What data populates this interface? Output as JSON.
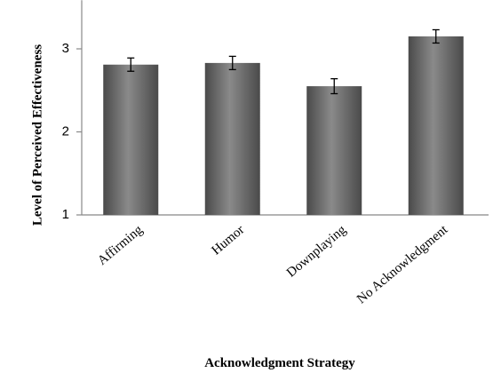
{
  "chart_data": {
    "type": "bar",
    "categories": [
      "Affirming",
      "Humor",
      "Downplaying",
      "No Acknowledgment"
    ],
    "values": [
      2.81,
      2.83,
      2.55,
      3.15
    ],
    "errors": [
      0.08,
      0.08,
      0.09,
      0.08
    ],
    "xlabel": "Acknowledgment Strategy",
    "ylabel": "Level of Perceived Effectiveness",
    "ylim": [
      1,
      3.5
    ],
    "yticks": [
      1,
      2,
      3
    ],
    "grid": false,
    "colors": {
      "bar_dark": "#4a4a4a",
      "bar_light": "#8a8a8a",
      "axis": "#888888",
      "error": "#000000"
    }
  }
}
